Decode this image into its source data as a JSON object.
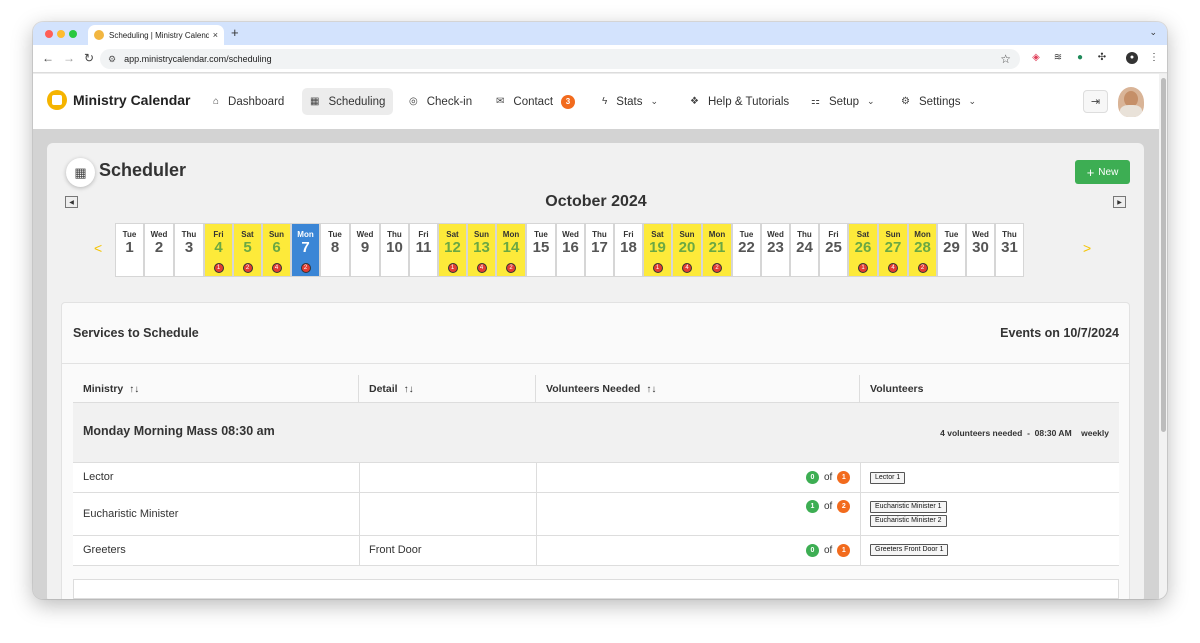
{
  "browser": {
    "tab_title": "Scheduling | Ministry Calenda",
    "tab_close": "×",
    "new_tab": "+",
    "url": "app.ministrycalendar.com/scheduling"
  },
  "app": {
    "brand": "Ministry Calendar",
    "nav": [
      {
        "label": "Dashboard",
        "icon": "home-icon"
      },
      {
        "label": "Scheduling",
        "icon": "calendar-clock-icon"
      },
      {
        "label": "Check-in",
        "icon": "check-circle-icon"
      },
      {
        "label": "Contact",
        "icon": "mail-icon",
        "badge": "3"
      },
      {
        "label": "Stats",
        "icon": "bolt-icon"
      },
      {
        "label": "Help & Tutorials",
        "icon": "life-ring-icon"
      },
      {
        "label": "Setup",
        "icon": "sitemap-icon"
      },
      {
        "label": "Settings",
        "icon": "gear-icon"
      }
    ]
  },
  "scheduler": {
    "title": "Scheduler",
    "new_label": "New",
    "month": "October 2024",
    "prev_day_arrow": "<",
    "next_day_arrow": ">",
    "days": [
      {
        "dow": "Tue",
        "num": "1",
        "count": ""
      },
      {
        "dow": "Wed",
        "num": "2",
        "count": ""
      },
      {
        "dow": "Thu",
        "num": "3",
        "count": ""
      },
      {
        "dow": "Fri",
        "num": "4",
        "count": "1"
      },
      {
        "dow": "Sat",
        "num": "5",
        "count": "2"
      },
      {
        "dow": "Sun",
        "num": "6",
        "count": "4"
      },
      {
        "dow": "Mon",
        "num": "7",
        "count": "2"
      },
      {
        "dow": "Tue",
        "num": "8",
        "count": ""
      },
      {
        "dow": "Wed",
        "num": "9",
        "count": ""
      },
      {
        "dow": "Thu",
        "num": "10",
        "count": ""
      },
      {
        "dow": "Fri",
        "num": "11",
        "count": ""
      },
      {
        "dow": "Sat",
        "num": "12",
        "count": "1"
      },
      {
        "dow": "Sun",
        "num": "13",
        "count": "4"
      },
      {
        "dow": "Mon",
        "num": "14",
        "count": "2"
      },
      {
        "dow": "Tue",
        "num": "15",
        "count": ""
      },
      {
        "dow": "Wed",
        "num": "16",
        "count": ""
      },
      {
        "dow": "Thu",
        "num": "17",
        "count": ""
      },
      {
        "dow": "Fri",
        "num": "18",
        "count": ""
      },
      {
        "dow": "Sat",
        "num": "19",
        "count": "1"
      },
      {
        "dow": "Sun",
        "num": "20",
        "count": "4"
      },
      {
        "dow": "Mon",
        "num": "21",
        "count": "2"
      },
      {
        "dow": "Tue",
        "num": "22",
        "count": ""
      },
      {
        "dow": "Wed",
        "num": "23",
        "count": ""
      },
      {
        "dow": "Thu",
        "num": "24",
        "count": ""
      },
      {
        "dow": "Fri",
        "num": "25",
        "count": ""
      },
      {
        "dow": "Sat",
        "num": "26",
        "count": "1"
      },
      {
        "dow": "Sun",
        "num": "27",
        "count": "4"
      },
      {
        "dow": "Mon",
        "num": "28",
        "count": "2"
      },
      {
        "dow": "Tue",
        "num": "29",
        "count": ""
      },
      {
        "dow": "Wed",
        "num": "30",
        "count": ""
      },
      {
        "dow": "Thu",
        "num": "31",
        "count": ""
      }
    ],
    "selected_day": "7",
    "colors": {
      "event_day": "#fdea3a",
      "selected": "#3b86d6",
      "count_badge": "#e23c33",
      "green": "#3dae53",
      "orange": "#f26b1d"
    }
  },
  "services": {
    "title": "Services to Schedule",
    "events_on": "Events on 10/7/2024",
    "columns": [
      "Ministry",
      "Detail",
      "Volunteers Needed",
      "Volunteers"
    ],
    "sort_icon": "↑↓",
    "group": {
      "title": "Monday Morning Mass 08:30 am",
      "needed": "4 volunteers needed",
      "sep": "-",
      "time": "08:30 AM",
      "freq": "weekly"
    },
    "of_label": "of",
    "rows": [
      {
        "ministry": "Lector",
        "detail": "",
        "filled": "0",
        "needed": "1",
        "slots": [
          "Lector 1"
        ]
      },
      {
        "ministry": "Eucharistic Minister",
        "detail": "",
        "filled": "1",
        "needed": "2",
        "slots": [
          "Eucharistic Minister 1",
          "Eucharistic Minister 2"
        ]
      },
      {
        "ministry": "Greeters",
        "detail": "Front Door",
        "filled": "0",
        "needed": "1",
        "slots": [
          "Greeters Front Door 1"
        ]
      }
    ]
  }
}
